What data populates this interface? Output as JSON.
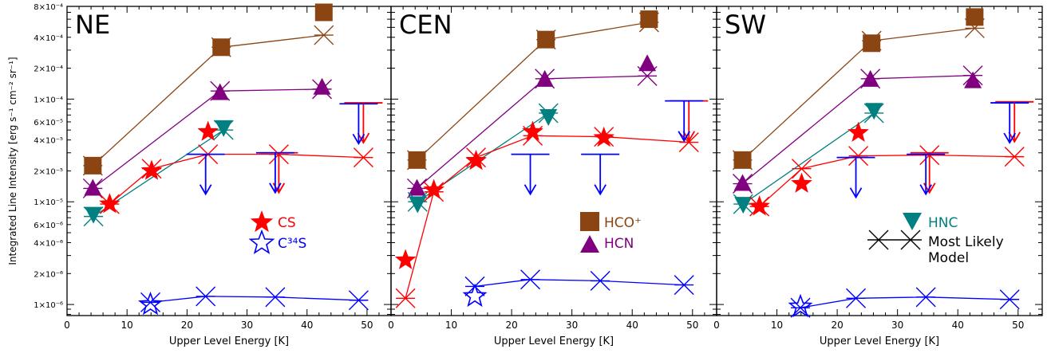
{
  "chart_data": {
    "type": "scatter",
    "ylabel": "Integrated Line Intensity [erg s⁻¹ cm⁻² sr⁻¹]",
    "xlabel": "Upper Level Energy [K]",
    "y_scale": "log",
    "ylim": [
      7.8e-07,
      0.0008
    ],
    "xlim": [
      0,
      54
    ],
    "x_ticks": [
      0,
      10,
      20,
      30,
      40,
      50
    ],
    "x_tick_labels": [
      "0",
      "10",
      "20",
      "30",
      "40",
      "50"
    ],
    "y_ticks": [
      1e-06,
      2e-06,
      4e-06,
      6e-06,
      1e-05,
      2e-05,
      4e-05,
      6e-05,
      0.0001,
      0.0002,
      0.0004,
      0.0008
    ],
    "y_tick_labels": [
      "1×10⁻⁶",
      "2×10⁻⁶",
      "4×10⁻⁶",
      "6×10⁻⁶",
      "1×10⁻⁵",
      "2×10⁻⁵",
      "4×10⁻⁵",
      "6×10⁻⁵",
      "1×10⁻⁴",
      "2×10⁻⁴",
      "4×10⁻⁴",
      "8×10⁻⁴"
    ],
    "legend": [
      {
        "label": "CS",
        "symbol": "filled-star",
        "color": "#ff0000"
      },
      {
        "label": "C³⁴S",
        "symbol": "open-star",
        "color": "#0000ff"
      },
      {
        "label": "HCO⁺",
        "symbol": "square",
        "color": "#8b4513"
      },
      {
        "label": "HCN",
        "symbol": "triangle-up",
        "color": "#800080"
      },
      {
        "label": "HNC",
        "symbol": "triangle-down",
        "color": "#008080"
      },
      {
        "label": "Most Likely\nModel",
        "symbol": "x-line",
        "color": "#000000"
      }
    ],
    "panels": [
      {
        "label": "NE",
        "series": [
          {
            "species": "HCO+",
            "color": "#8b4513",
            "obs": [
              {
                "x": 4.3,
                "y": 2.25e-05
              },
              {
                "x": 25.7,
                "y": 0.00032
              },
              {
                "x": 42.8,
                "y": 0.0007
              }
            ],
            "model": [
              {
                "x": 4.3,
                "y": 2.25e-05
              },
              {
                "x": 25.7,
                "y": 0.00032
              },
              {
                "x": 42.8,
                "y": 0.00042
              }
            ]
          },
          {
            "species": "HCN",
            "color": "#800080",
            "obs": [
              {
                "x": 4.3,
                "y": 1.35e-05
              },
              {
                "x": 25.5,
                "y": 0.000115
              },
              {
                "x": 42.5,
                "y": 0.00013
              }
            ],
            "model": [
              {
                "x": 4.3,
                "y": 1.35e-05
              },
              {
                "x": 25.5,
                "y": 0.00012
              },
              {
                "x": 42.5,
                "y": 0.000125
              }
            ]
          },
          {
            "species": "HNC",
            "color": "#008080",
            "obs": [
              {
                "x": 4.4,
                "y": 7.6e-06
              },
              {
                "x": 26.1,
                "y": 5.3e-05
              }
            ],
            "model": [
              {
                "x": 4.4,
                "y": 7.2e-06
              },
              {
                "x": 26.1,
                "y": 5e-05
              }
            ]
          },
          {
            "species": "CS",
            "color": "#ff0000",
            "obs": [
              {
                "x": 7.1,
                "y": 9.5e-06
              },
              {
                "x": 14.1,
                "y": 2e-05
              },
              {
                "x": 23.5,
                "y": 4.8e-05
              }
            ],
            "model": [
              {
                "x": 7.1,
                "y": 9.5e-06
              },
              {
                "x": 14.1,
                "y": 2.1e-05
              },
              {
                "x": 23.5,
                "y": 2.9e-05
              },
              {
                "x": 35.3,
                "y": 2.9e-05
              },
              {
                "x": 49.4,
                "y": 2.7e-05
              }
            ],
            "upper_limits": [
              {
                "x": 35.3,
                "y": 3e-05
              },
              {
                "x": 49.4,
                "y": 9.2e-05
              }
            ]
          },
          {
            "species": "C34S",
            "color": "#0000ff",
            "obs": [
              {
                "x": 13.9,
                "y": 1e-06
              }
            ],
            "model": [
              {
                "x": 13.9,
                "y": 1.05e-06
              },
              {
                "x": 23.1,
                "y": 1.2e-06
              },
              {
                "x": 34.7,
                "y": 1.18e-06
              },
              {
                "x": 48.6,
                "y": 1.1e-06
              }
            ],
            "upper_limits": [
              {
                "x": 23.1,
                "y": 2.9e-05
              },
              {
                "x": 34.7,
                "y": 3e-05
              },
              {
                "x": 48.6,
                "y": 9e-05
              }
            ]
          }
        ]
      },
      {
        "label": "CEN",
        "series": [
          {
            "species": "HCO+",
            "color": "#8b4513",
            "obs": [
              {
                "x": 4.3,
                "y": 2.55e-05
              },
              {
                "x": 25.7,
                "y": 0.00038
              },
              {
                "x": 42.8,
                "y": 0.0006
              }
            ],
            "model": [
              {
                "x": 4.3,
                "y": 2.55e-05
              },
              {
                "x": 25.7,
                "y": 0.00038
              },
              {
                "x": 42.8,
                "y": 0.00056
              }
            ]
          },
          {
            "species": "HCN",
            "color": "#800080",
            "obs": [
              {
                "x": 4.3,
                "y": 1.35e-05
              },
              {
                "x": 25.5,
                "y": 0.000155
              },
              {
                "x": 42.5,
                "y": 0.00022
              }
            ],
            "model": [
              {
                "x": 4.3,
                "y": 1.35e-05
              },
              {
                "x": 25.5,
                "y": 0.000158
              },
              {
                "x": 42.5,
                "y": 0.000168
              }
            ]
          },
          {
            "species": "HNC",
            "color": "#008080",
            "obs": [
              {
                "x": 4.4,
                "y": 9.6e-06
              },
              {
                "x": 26.1,
                "y": 6.8e-05
              }
            ],
            "model": [
              {
                "x": 4.4,
                "y": 1e-05
              },
              {
                "x": 26.1,
                "y": 7.3e-05
              }
            ]
          },
          {
            "species": "CS",
            "color": "#ff0000",
            "obs": [
              {
                "x": 2.4,
                "y": 2.7e-06
              },
              {
                "x": 7.1,
                "y": 1.3e-05
              },
              {
                "x": 14.1,
                "y": 2.5e-05
              },
              {
                "x": 23.5,
                "y": 4.8e-05
              },
              {
                "x": 35.3,
                "y": 4.2e-05
              }
            ],
            "model": [
              {
                "x": 2.4,
                "y": 1.15e-06
              },
              {
                "x": 7.1,
                "y": 1.25e-05
              },
              {
                "x": 14.1,
                "y": 2.7e-05
              },
              {
                "x": 23.5,
                "y": 4.4e-05
              },
              {
                "x": 35.3,
                "y": 4.3e-05
              },
              {
                "x": 49.4,
                "y": 3.8e-05
              }
            ],
            "upper_limits": [
              {
                "x": 49.4,
                "y": 9.6e-05
              }
            ]
          },
          {
            "species": "C34S",
            "color": "#0000ff",
            "obs": [
              {
                "x": 13.9,
                "y": 1.2e-06
              }
            ],
            "model": [
              {
                "x": 13.9,
                "y": 1.5e-06
              },
              {
                "x": 23.1,
                "y": 1.75e-06
              },
              {
                "x": 34.7,
                "y": 1.7e-06
              },
              {
                "x": 48.6,
                "y": 1.55e-06
              }
            ],
            "upper_limits": [
              {
                "x": 23.1,
                "y": 2.9e-05
              },
              {
                "x": 34.7,
                "y": 2.9e-05
              },
              {
                "x": 48.6,
                "y": 9.6e-05
              }
            ]
          }
        ]
      },
      {
        "label": "SW",
        "series": [
          {
            "species": "HCO+",
            "color": "#8b4513",
            "obs": [
              {
                "x": 4.3,
                "y": 2.55e-05
              },
              {
                "x": 25.7,
                "y": 0.00035
              },
              {
                "x": 42.8,
                "y": 0.00063
              }
            ],
            "model": [
              {
                "x": 4.3,
                "y": 2.55e-05
              },
              {
                "x": 25.7,
                "y": 0.00037
              },
              {
                "x": 42.8,
                "y": 0.00049
              }
            ]
          },
          {
            "species": "HCN",
            "color": "#800080",
            "obs": [
              {
                "x": 4.3,
                "y": 1.5e-05
              },
              {
                "x": 25.5,
                "y": 0.000155
              },
              {
                "x": 42.5,
                "y": 0.00015
              }
            ],
            "model": [
              {
                "x": 4.3,
                "y": 1.5e-05
              },
              {
                "x": 25.5,
                "y": 0.000158
              },
              {
                "x": 42.5,
                "y": 0.00017
              }
            ]
          },
          {
            "species": "HNC",
            "color": "#008080",
            "obs": [
              {
                "x": 4.4,
                "y": 9.5e-06
              },
              {
                "x": 26.1,
                "y": 7.8e-05
              }
            ],
            "model": [
              {
                "x": 4.4,
                "y": 9.5e-06
              },
              {
                "x": 26.1,
                "y": 7.3e-05
              }
            ]
          },
          {
            "species": "CS",
            "color": "#ff0000",
            "obs": [
              {
                "x": 7.1,
                "y": 9e-06
              },
              {
                "x": 14.1,
                "y": 1.5e-05
              },
              {
                "x": 23.5,
                "y": 4.7e-05
              }
            ],
            "model": [
              {
                "x": 7.1,
                "y": 9e-06
              },
              {
                "x": 14.1,
                "y": 2.1e-05
              },
              {
                "x": 23.5,
                "y": 2.8e-05
              },
              {
                "x": 35.3,
                "y": 2.85e-05
              },
              {
                "x": 49.4,
                "y": 2.75e-05
              }
            ],
            "upper_limits": [
              {
                "x": 35.3,
                "y": 3e-05
              },
              {
                "x": 49.4,
                "y": 9.4e-05
              }
            ]
          },
          {
            "species": "C34S",
            "color": "#0000ff",
            "obs": [
              {
                "x": 13.9,
                "y": 9.5e-07
              }
            ],
            "model": [
              {
                "x": 13.9,
                "y": 9.3e-07
              },
              {
                "x": 23.1,
                "y": 1.15e-06
              },
              {
                "x": 34.7,
                "y": 1.18e-06
              },
              {
                "x": 48.6,
                "y": 1.12e-06
              }
            ],
            "upper_limits": [
              {
                "x": 23.1,
                "y": 2.7e-05
              },
              {
                "x": 34.7,
                "y": 2.9e-05
              },
              {
                "x": 48.6,
                "y": 9.2e-05
              }
            ]
          }
        ]
      }
    ]
  }
}
